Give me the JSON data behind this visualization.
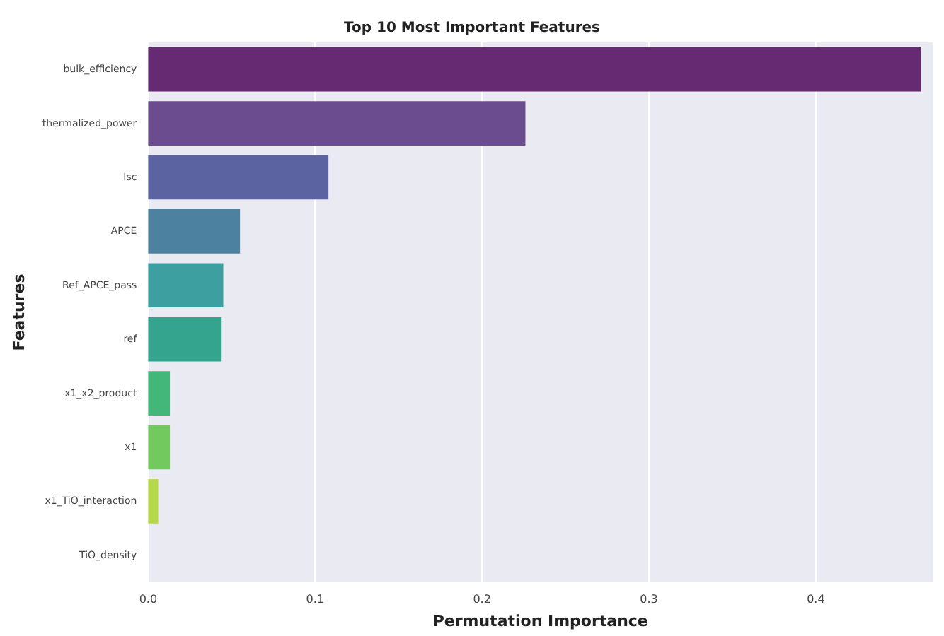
{
  "chart_data": {
    "type": "bar",
    "orientation": "horizontal",
    "title": "Top 10 Most Important Features",
    "xlabel": "Permutation Importance",
    "ylabel": "Features",
    "categories": [
      "bulk_efficiency",
      "thermalized_power",
      "Isc",
      "APCE",
      "Ref_APCE_pass",
      "ref",
      "x1_x2_product",
      "x1",
      "x1_TiO_interaction",
      "TiO_density"
    ],
    "values": [
      0.463,
      0.226,
      0.108,
      0.055,
      0.045,
      0.044,
      0.013,
      0.013,
      0.006,
      0.0
    ],
    "colors": [
      "#652a72",
      "#6b4d8f",
      "#5b64a0",
      "#4c82a0",
      "#3d9f9f",
      "#35a48e",
      "#43b77a",
      "#72c95e",
      "#b5d84a",
      "#dde03f"
    ],
    "xlim": [
      0,
      0.47
    ],
    "xticks": [
      {
        "value": 0,
        "label": "0.0"
      },
      0.1,
      0.2,
      0.3,
      0.4
    ],
    "grid": "x"
  }
}
